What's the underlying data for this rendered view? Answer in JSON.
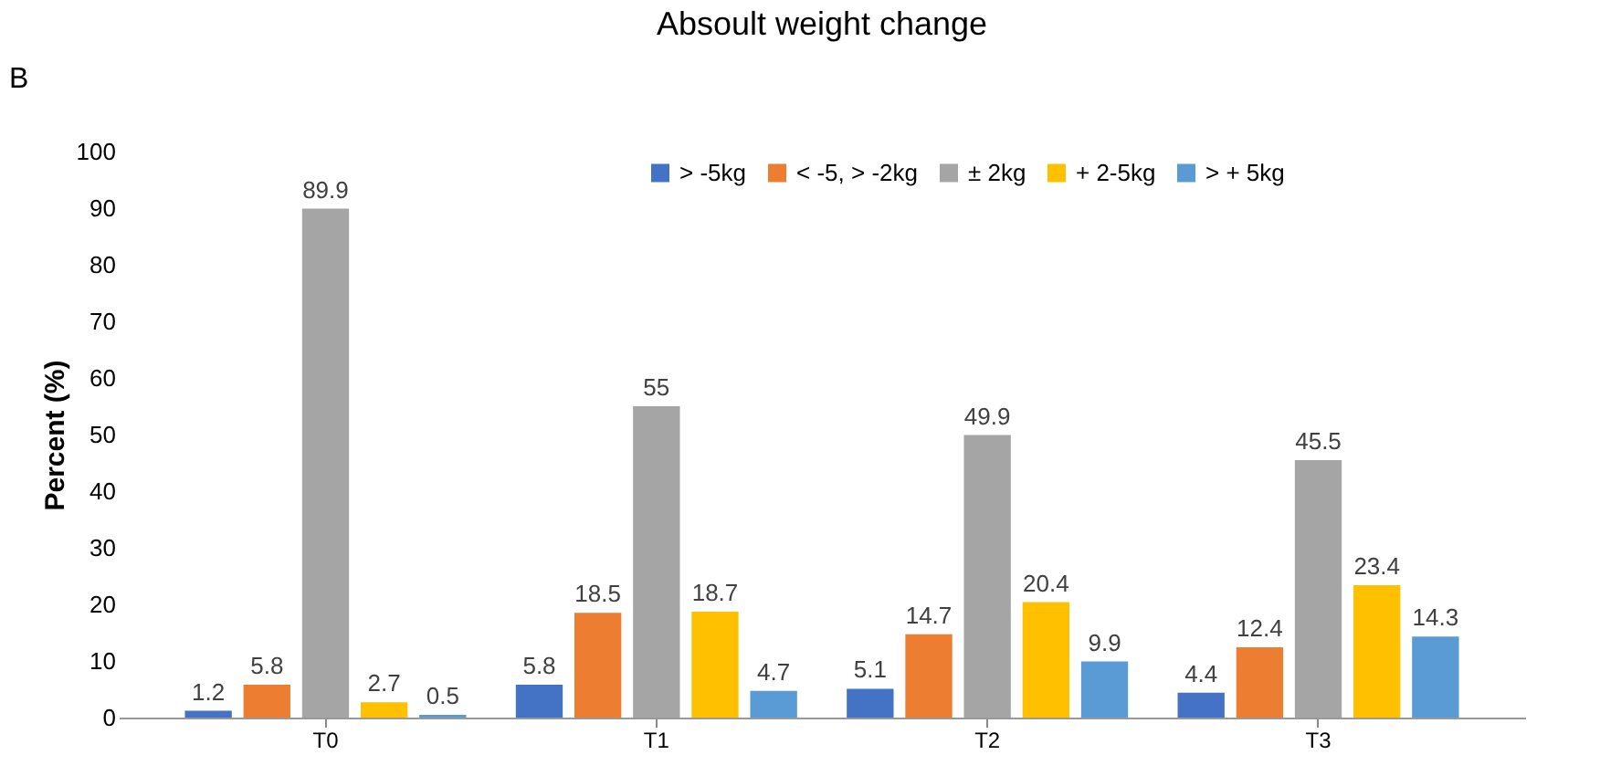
{
  "chart_data": {
    "type": "bar",
    "title": "Absoult weight change",
    "ylabel": "Percent (%)",
    "annotations": [
      "B"
    ],
    "categories": [
      "T0",
      "T1",
      "T2",
      "T3"
    ],
    "series": [
      {
        "name": "> -5kg",
        "color": "#4472c4",
        "values": [
          1.2,
          5.8,
          5.1,
          4.4
        ]
      },
      {
        "name": "< -5, > -2kg",
        "color": "#ed7d31",
        "values": [
          5.8,
          18.5,
          14.7,
          12.4
        ]
      },
      {
        "name": "± 2kg",
        "color": "#a5a5a5",
        "values": [
          89.9,
          55,
          49.9,
          45.5
        ]
      },
      {
        "name": "+ 2-5kg",
        "color": "#ffc000",
        "values": [
          2.7,
          18.7,
          20.4,
          23.4
        ]
      },
      {
        "name": "> + 5kg",
        "color": "#5b9bd5",
        "values": [
          0.5,
          4.7,
          9.9,
          14.3
        ]
      }
    ],
    "ylim": [
      0,
      100
    ],
    "yticks": [
      0,
      10,
      20,
      30,
      40,
      50,
      60,
      70,
      80,
      90,
      100
    ],
    "grid": false,
    "legend": "top",
    "data_labels": true
  }
}
